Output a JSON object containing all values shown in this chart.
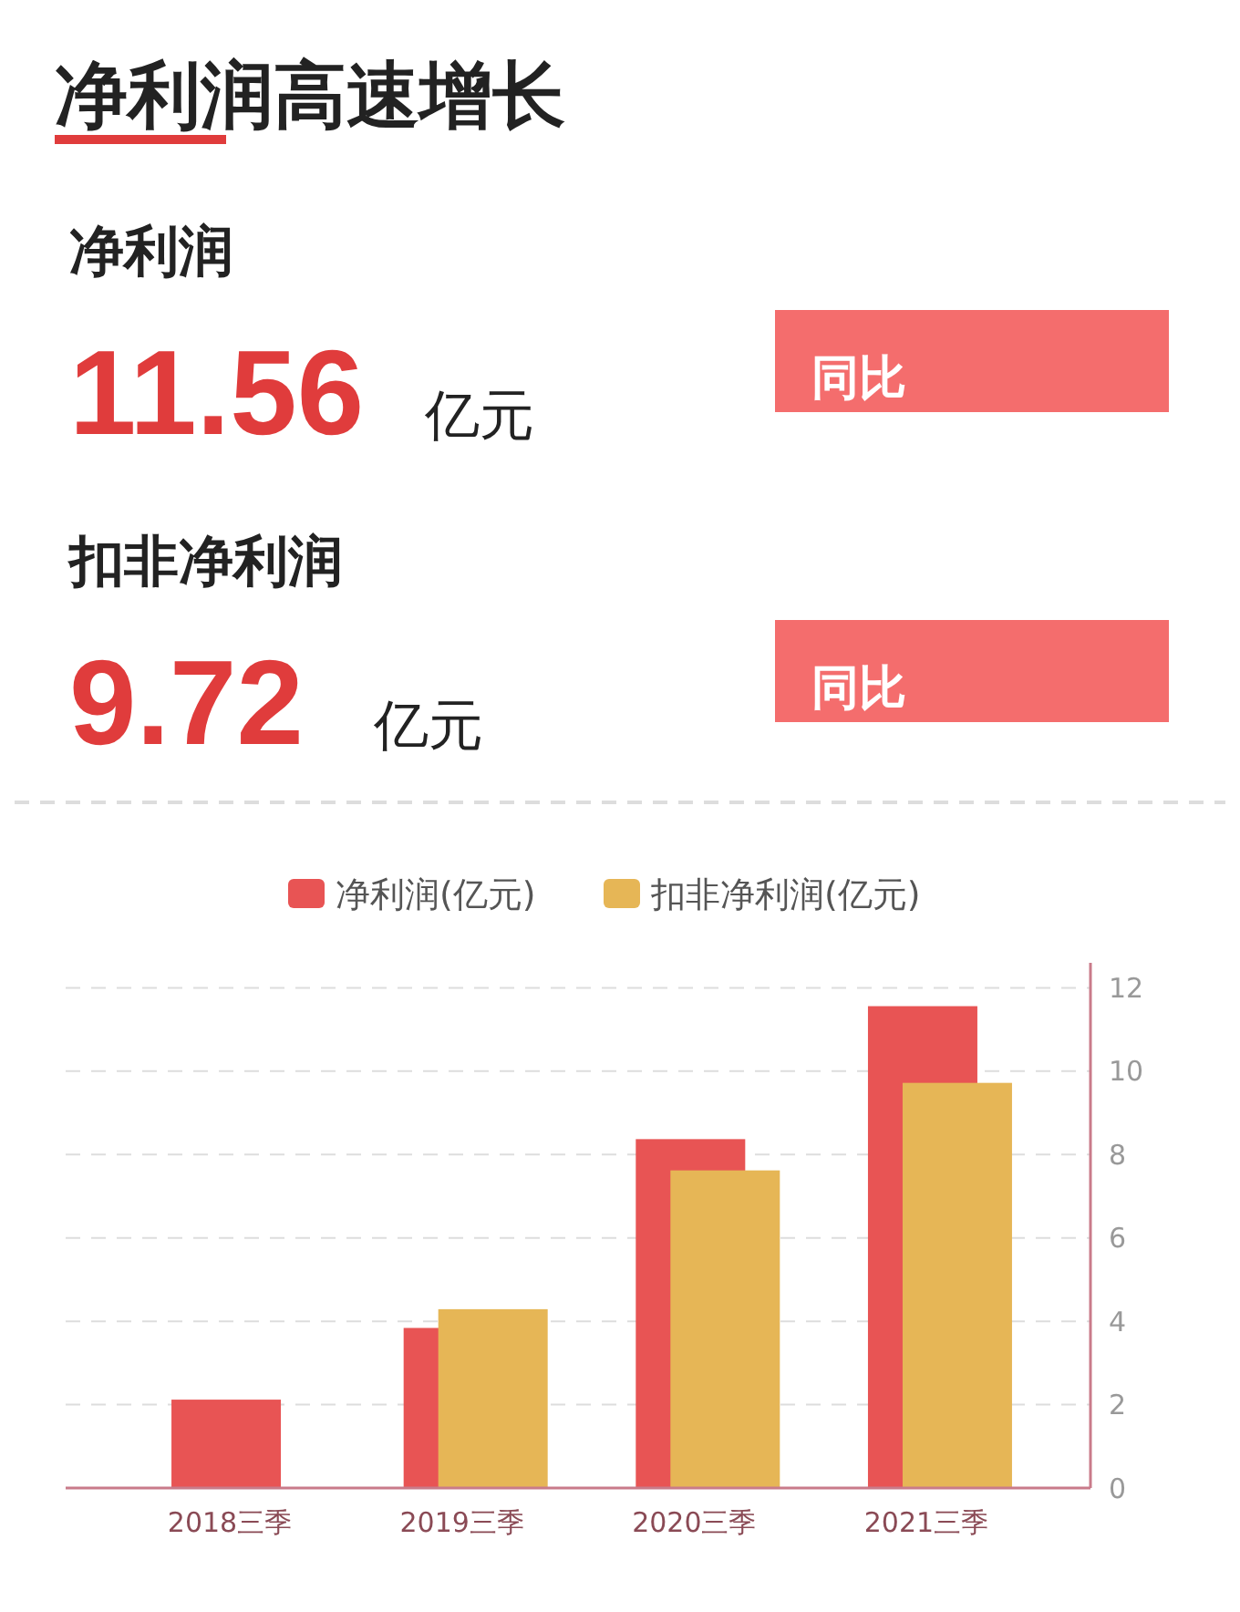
{
  "chart_data": {
    "type": "bar",
    "title": "净利润高速增长",
    "annotations": [
      "净利润",
      "11.56",
      "亿元",
      "扣非净利润",
      "9.72",
      "亿元",
      "同比",
      "同比"
    ],
    "categories": [
      "2018三季",
      "2019三季",
      "2020三季",
      "2021三季"
    ],
    "series": [
      {
        "name": "净利润(亿元)",
        "color": "#e85454",
        "values": [
          2.12,
          3.84,
          8.37,
          11.56
        ]
      },
      {
        "name": "扣非净利润(亿元)",
        "color": "#e6b656",
        "values": [
          null,
          4.29,
          7.62,
          9.72
        ]
      }
    ],
    "ylim": [
      0,
      12.6
    ],
    "yticks": [
      0,
      2,
      4,
      6,
      8,
      10,
      12
    ],
    "grid": "y",
    "legend": "top"
  }
}
